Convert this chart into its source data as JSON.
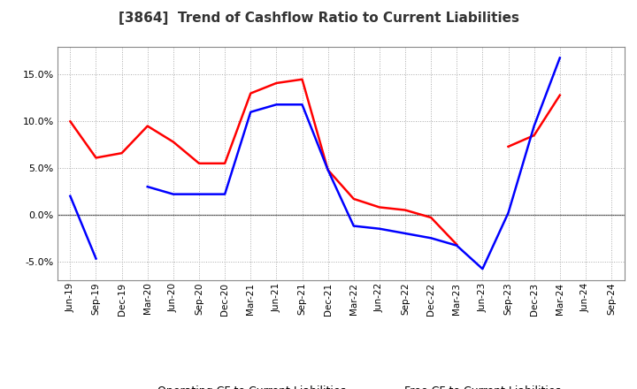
{
  "title": "[3864]  Trend of Cashflow Ratio to Current Liabilities",
  "x_labels": [
    "Jun-19",
    "Sep-19",
    "Dec-19",
    "Mar-20",
    "Jun-20",
    "Sep-20",
    "Dec-20",
    "Mar-21",
    "Jun-21",
    "Sep-21",
    "Dec-21",
    "Mar-22",
    "Jun-22",
    "Sep-22",
    "Dec-22",
    "Mar-23",
    "Jun-23",
    "Sep-23",
    "Dec-23",
    "Mar-24",
    "Jun-24",
    "Sep-24"
  ],
  "operating_cf": [
    10.0,
    6.1,
    6.6,
    9.5,
    7.8,
    5.5,
    5.5,
    13.0,
    14.1,
    14.5,
    4.8,
    1.7,
    0.8,
    0.5,
    -0.3,
    -3.2,
    null,
    7.3,
    8.5,
    12.8,
    null,
    null
  ],
  "free_cf": [
    2.0,
    -4.7,
    null,
    3.0,
    2.2,
    2.2,
    2.2,
    11.0,
    11.8,
    11.8,
    4.8,
    -1.2,
    -1.5,
    -2.0,
    -2.5,
    -3.3,
    -5.8,
    0.2,
    9.5,
    16.8,
    null,
    null
  ],
  "ylim": [
    -7,
    18
  ],
  "yticks": [
    -5.0,
    0.0,
    5.0,
    10.0,
    15.0
  ],
  "operating_color": "#ff0000",
  "free_color": "#0000ff",
  "background_color": "#ffffff",
  "plot_bg_color": "#ffffff",
  "grid_color": "#aaaaaa",
  "legend_labels": [
    "Operating CF to Current Liabilities",
    "Free CF to Current Liabilities"
  ]
}
